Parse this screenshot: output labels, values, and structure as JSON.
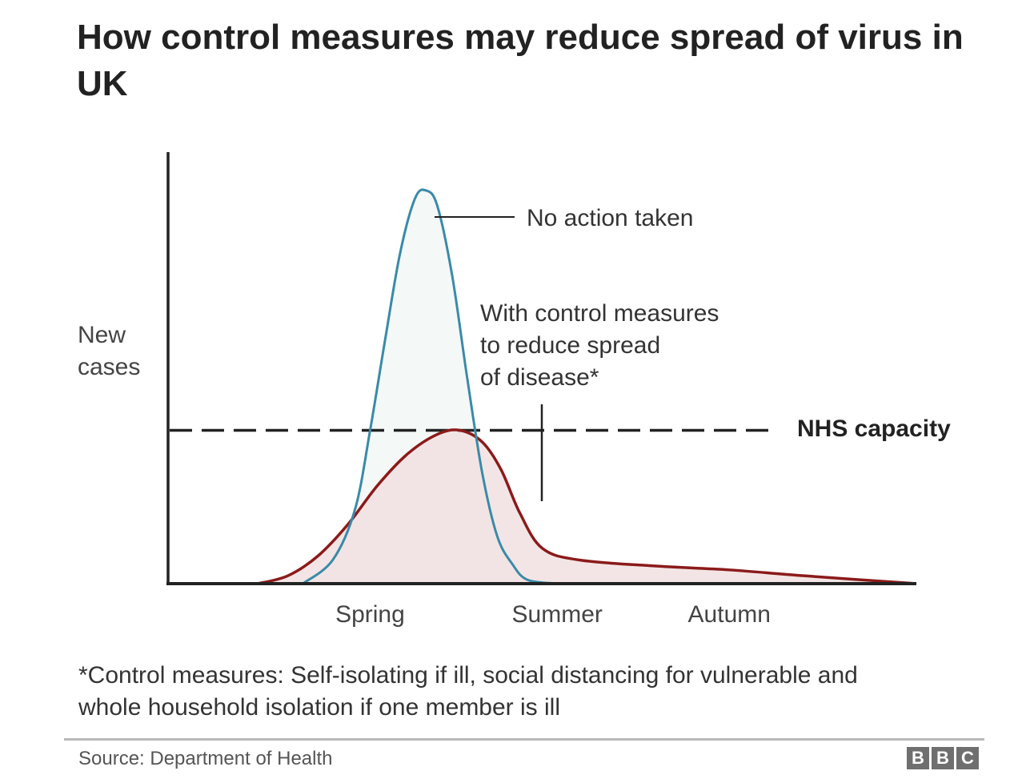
{
  "chart_data": {
    "type": "area",
    "title": "How control measures may reduce spread of virus in UK",
    "ylabel": "New cases",
    "xlabel": "",
    "x_ticks": [
      "Spring",
      "Summer",
      "Autumn"
    ],
    "x_tick_positions": [
      0.27,
      0.52,
      0.75
    ],
    "xlim": [
      0,
      1
    ],
    "ylim": [
      0,
      1
    ],
    "grid": false,
    "legend": "none",
    "reference_lines": [
      {
        "name": "NHS capacity",
        "y": 0.39,
        "style": "dashed",
        "color": "#222222"
      }
    ],
    "series": [
      {
        "name": "No action taken",
        "color": "#3a8aa8",
        "fill": "#f3f7f6",
        "x": [
          0.18,
          0.22,
          0.25,
          0.27,
          0.29,
          0.31,
          0.33,
          0.345,
          0.36,
          0.38,
          0.4,
          0.42,
          0.44,
          0.46,
          0.48,
          0.52
        ],
        "y": [
          0.0,
          0.06,
          0.19,
          0.39,
          0.62,
          0.84,
          0.98,
          1.0,
          0.96,
          0.78,
          0.52,
          0.28,
          0.12,
          0.05,
          0.01,
          0.0
        ]
      },
      {
        "name": "With control measures to reduce spread of disease*",
        "color": "#8b1a1a",
        "fill": "#f1e0e0",
        "x": [
          0.12,
          0.16,
          0.2,
          0.24,
          0.28,
          0.32,
          0.36,
          0.39,
          0.42,
          0.445,
          0.47,
          0.5,
          0.55,
          0.65,
          0.75,
          0.85,
          1.0
        ],
        "y": [
          0.0,
          0.02,
          0.07,
          0.15,
          0.25,
          0.33,
          0.38,
          0.39,
          0.36,
          0.29,
          0.18,
          0.09,
          0.06,
          0.045,
          0.035,
          0.02,
          0.0
        ]
      }
    ],
    "annotations": [
      {
        "text": "No action taken",
        "target_series": 0
      },
      {
        "lines": [
          "With control measures",
          "to reduce spread",
          "of disease*"
        ],
        "target_series": 1
      },
      {
        "text": "NHS capacity",
        "target": "reference_line"
      }
    ]
  },
  "footnote": {
    "line1": "*Control measures: Self-isolating if ill, social distancing for vulnerable and",
    "line2": "whole household isolation if one member is ill"
  },
  "source": "Source: Department of Health",
  "logo": [
    "B",
    "B",
    "C"
  ],
  "colors": {
    "axis": "#222222",
    "blue": "#3a8aa8",
    "red": "#8b1a1a"
  }
}
